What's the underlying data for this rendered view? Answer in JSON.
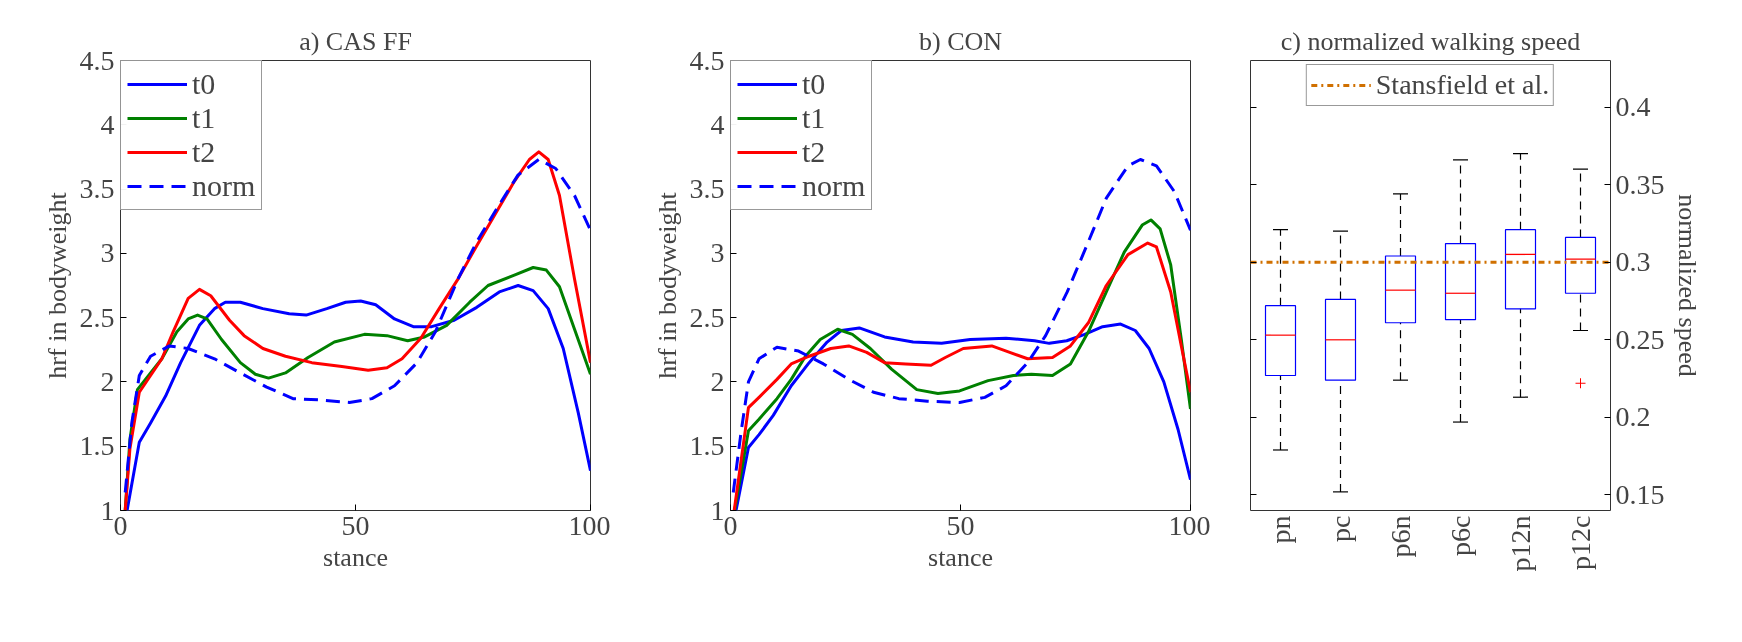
{
  "chart_data": [
    {
      "type": "line",
      "title": "a) CAS FF",
      "xlabel": "stance",
      "ylabel": "hrf in bodyweight",
      "xlim": [
        0,
        100
      ],
      "ylim": [
        1,
        4.5
      ],
      "xticks": [
        0,
        50,
        100
      ],
      "yticks": [
        1,
        1.5,
        2,
        2.5,
        3,
        3.5,
        4,
        4.5
      ],
      "grid": false,
      "legend": "top left",
      "series": [
        {
          "name": "t0",
          "color": "#0000ff",
          "line_style": "solid",
          "x": [
            1.4,
            4,
            6.4,
            9.6,
            12.8,
            16.8,
            20,
            22.3,
            25.5,
            30.3,
            35.9,
            39.5,
            43.9,
            47.9,
            51.1,
            54.3,
            58.3,
            62.3,
            66.2,
            71,
            75.8,
            80.6,
            84.6,
            87.8,
            91,
            94.2,
            97.4,
            100
          ],
          "values": [
            1.0,
            1.53,
            1.68,
            1.89,
            2.15,
            2.44,
            2.57,
            2.62,
            2.62,
            2.57,
            2.53,
            2.52,
            2.57,
            2.62,
            2.63,
            2.6,
            2.49,
            2.43,
            2.43,
            2.48,
            2.58,
            2.7,
            2.75,
            2.71,
            2.57,
            2.26,
            1.76,
            1.31
          ]
        },
        {
          "name": "t1",
          "color": "#008000",
          "line_style": "solid",
          "x": [
            1,
            2,
            3.6,
            6.4,
            8.8,
            12,
            14.4,
            16.4,
            18.4,
            21.5,
            25.5,
            28.7,
            31.5,
            35.1,
            39.9,
            45.5,
            51.9,
            56.7,
            61.1,
            64.7,
            69.4,
            74.3,
            78.2,
            83.8,
            87.8,
            90.6,
            93.4,
            96.6,
            100
          ],
          "values": [
            1.0,
            1.55,
            1.94,
            2.07,
            2.18,
            2.39,
            2.49,
            2.52,
            2.49,
            2.33,
            2.15,
            2.06,
            2.03,
            2.07,
            2.19,
            2.31,
            2.37,
            2.36,
            2.32,
            2.35,
            2.44,
            2.62,
            2.75,
            2.83,
            2.89,
            2.87,
            2.74,
            2.41,
            2.06
          ]
        },
        {
          "name": "t2",
          "color": "#ff0000",
          "line_style": "solid",
          "x": [
            1,
            2,
            4,
            6.4,
            8.8,
            11.2,
            14.4,
            16.8,
            19.2,
            23.2,
            26.3,
            30.3,
            35.1,
            40.7,
            47.1,
            52.7,
            56.7,
            59.9,
            63.9,
            67.8,
            71.8,
            75.8,
            79.8,
            83.8,
            87,
            89,
            91,
            93.4,
            96.6,
            100
          ],
          "values": [
            1.0,
            1.48,
            1.92,
            2.05,
            2.18,
            2.39,
            2.65,
            2.72,
            2.67,
            2.48,
            2.36,
            2.26,
            2.2,
            2.15,
            2.12,
            2.09,
            2.11,
            2.18,
            2.34,
            2.57,
            2.8,
            3.06,
            3.31,
            3.56,
            3.73,
            3.79,
            3.73,
            3.45,
            2.8,
            2.15
          ]
        },
        {
          "name": "norm",
          "color": "#0000ff",
          "line_style": "dashed",
          "x": [
            1,
            2.4,
            4,
            6.4,
            10.4,
            14.4,
            20,
            25.5,
            31.1,
            36.7,
            42.3,
            48.7,
            53.5,
            58.3,
            63.1,
            67,
            71.8,
            75.8,
            80.6,
            84.6,
            89,
            92.6,
            96.6,
            100
          ],
          "values": [
            1.14,
            1.68,
            2.05,
            2.2,
            2.28,
            2.26,
            2.18,
            2.07,
            1.96,
            1.87,
            1.86,
            1.84,
            1.87,
            1.97,
            2.15,
            2.39,
            2.8,
            3.09,
            3.38,
            3.61,
            3.73,
            3.66,
            3.45,
            3.18
          ]
        }
      ]
    },
    {
      "type": "line",
      "title": "b) CON",
      "xlabel": "stance",
      "ylabel": "hrf in bodyweight",
      "xlim": [
        0,
        100
      ],
      "ylim": [
        1,
        4.5
      ],
      "xticks": [
        0,
        50,
        100
      ],
      "yticks": [
        1,
        1.5,
        2,
        2.5,
        3,
        3.5,
        4,
        4.5
      ],
      "grid": false,
      "legend": "top left",
      "series": [
        {
          "name": "t0",
          "color": "#0000ff",
          "line_style": "solid",
          "x": [
            1.2,
            3.9,
            6.2,
            9.3,
            13.2,
            17.1,
            21,
            24.1,
            28,
            33.5,
            39.7,
            45.9,
            52.1,
            59.9,
            66.1,
            69.3,
            73.1,
            77,
            80.9,
            84.8,
            88,
            91,
            94.2,
            97.3,
            100
          ],
          "values": [
            1.0,
            1.49,
            1.59,
            1.74,
            1.97,
            2.15,
            2.31,
            2.4,
            2.42,
            2.35,
            2.31,
            2.3,
            2.33,
            2.34,
            2.32,
            2.3,
            2.32,
            2.37,
            2.43,
            2.45,
            2.4,
            2.26,
            2.0,
            1.63,
            1.24
          ]
        },
        {
          "name": "t1",
          "color": "#008000",
          "line_style": "solid",
          "x": [
            0.9,
            3.9,
            6.2,
            10.1,
            13.2,
            16.3,
            19.5,
            23.3,
            26.5,
            30.4,
            35,
            40.5,
            45.1,
            49.8,
            56,
            61.5,
            65.4,
            70,
            73.9,
            77.8,
            81.7,
            85.6,
            89.5,
            91.4,
            93.4,
            95.7,
            98,
            100
          ],
          "values": [
            1.0,
            1.62,
            1.71,
            1.87,
            2.02,
            2.2,
            2.33,
            2.41,
            2.37,
            2.26,
            2.1,
            1.94,
            1.91,
            1.93,
            2.01,
            2.05,
            2.06,
            2.05,
            2.14,
            2.39,
            2.7,
            3.01,
            3.22,
            3.26,
            3.19,
            2.91,
            2.33,
            1.79
          ]
        },
        {
          "name": "t2",
          "color": "#ff0000",
          "line_style": "solid",
          "x": [
            0.8,
            3.9,
            6.2,
            10.1,
            13.2,
            17.1,
            21.8,
            25.7,
            29.6,
            33.5,
            38.1,
            43.6,
            46.7,
            50.6,
            56.8,
            60.7,
            64.6,
            70,
            73.9,
            77.8,
            81.7,
            86.4,
            90.7,
            92.6,
            95.7,
            98,
            100
          ],
          "values": [
            1.0,
            1.8,
            1.88,
            2.02,
            2.14,
            2.2,
            2.26,
            2.28,
            2.23,
            2.15,
            2.14,
            2.13,
            2.19,
            2.26,
            2.28,
            2.23,
            2.18,
            2.19,
            2.28,
            2.46,
            2.75,
            2.99,
            3.08,
            3.05,
            2.7,
            2.28,
            1.92
          ]
        },
        {
          "name": "norm",
          "color": "#0000ff",
          "line_style": "dashed",
          "x": [
            0.6,
            2.3,
            3.9,
            6.2,
            10.1,
            14.8,
            20.2,
            25.7,
            31.1,
            36.6,
            42.8,
            49.8,
            55.3,
            59.9,
            64.6,
            68.5,
            73.2,
            77.8,
            81.7,
            86.4,
            89.1,
            92.6,
            96.5,
            100
          ],
          "values": [
            1.14,
            1.61,
            2.0,
            2.18,
            2.27,
            2.24,
            2.14,
            2.02,
            1.92,
            1.87,
            1.85,
            1.84,
            1.88,
            1.97,
            2.15,
            2.36,
            2.7,
            3.09,
            3.43,
            3.68,
            3.73,
            3.68,
            3.48,
            3.18
          ]
        }
      ]
    },
    {
      "type": "box",
      "title": "c) normalized walking speed",
      "ylabel": "normalized speed",
      "categories": [
        "pn",
        "pc",
        "p6n",
        "p6c",
        "p12n",
        "p12c"
      ],
      "ylim": [
        0.14,
        0.43
      ],
      "yticks": [
        0.15,
        0.2,
        0.25,
        0.3,
        0.35,
        0.4
      ],
      "grid": false,
      "legend": "top",
      "series": [
        {
          "color": "#0000ff",
          "boxes": [
            {
              "low": 0.179,
              "q1": 0.227,
              "median": 0.253,
              "q3": 0.272,
              "high": 0.321
            },
            {
              "low": 0.152,
              "q1": 0.224,
              "median": 0.25,
              "q3": 0.276,
              "high": 0.32
            },
            {
              "low": 0.224,
              "q1": 0.261,
              "median": 0.282,
              "q3": 0.304,
              "high": 0.344
            },
            {
              "low": 0.197,
              "q1": 0.263,
              "median": 0.28,
              "q3": 0.312,
              "high": 0.366
            },
            {
              "low": 0.213,
              "q1": 0.27,
              "median": 0.305,
              "q3": 0.321,
              "high": 0.37
            },
            {
              "low": 0.256,
              "q1": 0.28,
              "median": 0.302,
              "q3": 0.316,
              "high": 0.36,
              "outliers": [
                0.222
              ]
            }
          ]
        }
      ],
      "ref_lines": [
        {
          "axis": "y",
          "value": 0.3,
          "label": "Stansfield et al.",
          "color": "#d07000",
          "line_style": "dashdot"
        }
      ]
    }
  ]
}
